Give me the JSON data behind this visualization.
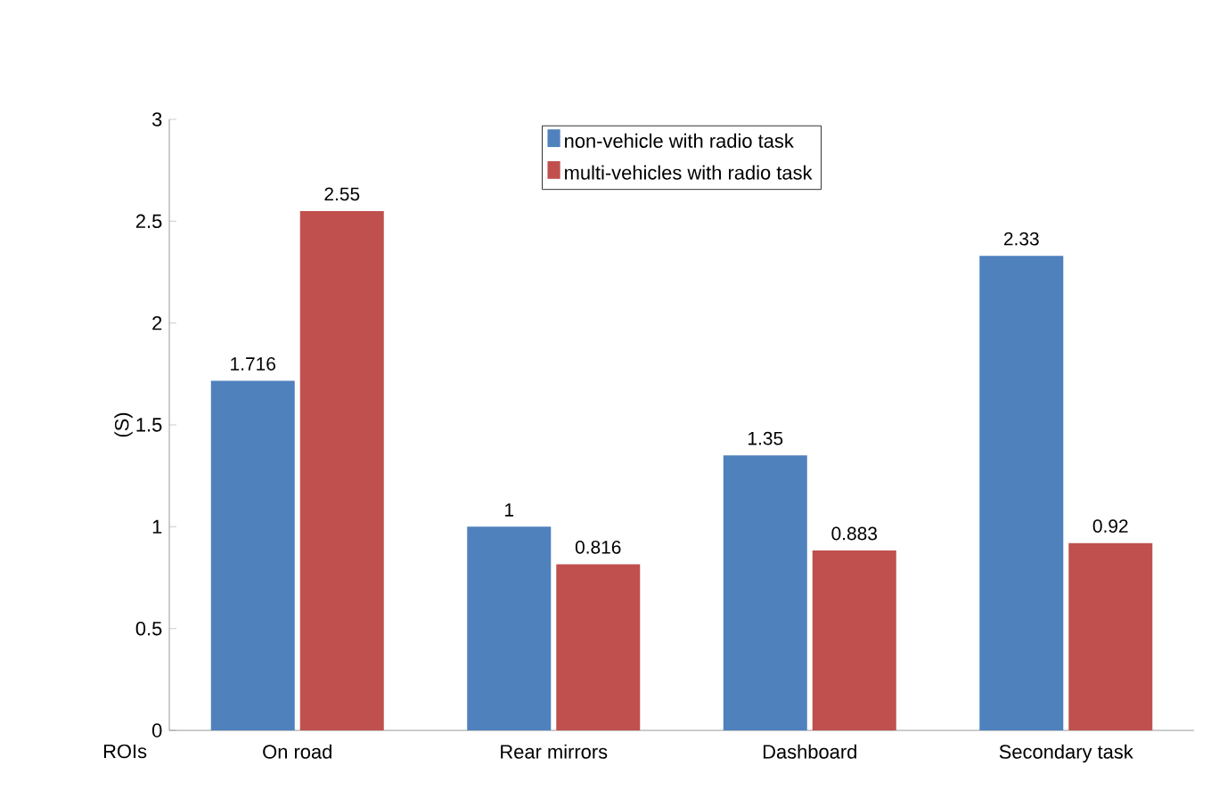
{
  "chart_data": {
    "type": "bar",
    "ylabel": "(S)",
    "xlabel": "ROIs",
    "categories": [
      "On road",
      "Rear mirrors",
      "Dashboard",
      "Secondary task"
    ],
    "series": [
      {
        "name": "non-vehicle with radio task",
        "color": "#4f81bd",
        "values": [
          1.716,
          1,
          1.35,
          2.33
        ]
      },
      {
        "name": "multi-vehicles with radio task",
        "color": "#c0504d",
        "values": [
          2.55,
          0.816,
          0.883,
          0.92
        ]
      }
    ],
    "ylim": [
      0,
      3
    ],
    "yticks": [
      0,
      0.5,
      1,
      1.5,
      2,
      2.5,
      3
    ],
    "data_labels": true,
    "grid": false,
    "legend": "top"
  }
}
